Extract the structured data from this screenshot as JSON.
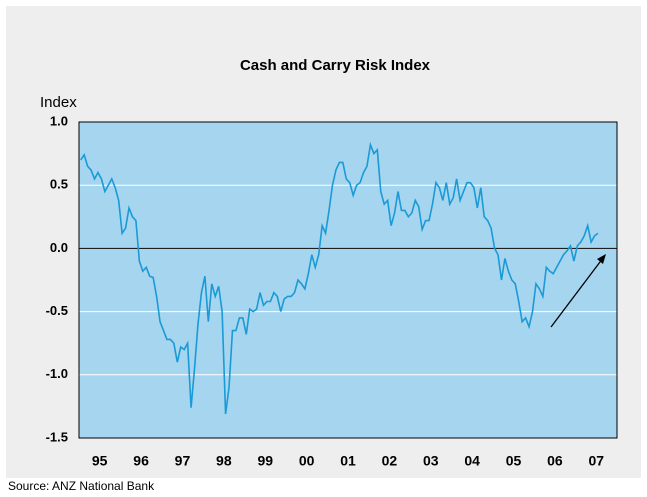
{
  "chart_data": {
    "type": "line",
    "title": "Cash and Carry Risk Index",
    "y_label": "Index",
    "source": "Source: ANZ National Bank",
    "categories": [
      null,
      null,
      null,
      null,
      null,
      null,
      "95",
      null,
      null,
      null,
      null,
      null,
      null,
      null,
      null,
      null,
      null,
      null,
      "96",
      null,
      null,
      null,
      null,
      null,
      null,
      null,
      null,
      null,
      null,
      null,
      "97",
      null,
      null,
      null,
      null,
      null,
      null,
      null,
      null,
      null,
      null,
      null,
      "98",
      null,
      null,
      null,
      null,
      null,
      null,
      null,
      null,
      null,
      null,
      null,
      "99",
      null,
      null,
      null,
      null,
      null,
      null,
      null,
      null,
      null,
      null,
      null,
      "00",
      null,
      null,
      null,
      null,
      null,
      null,
      null,
      null,
      null,
      null,
      null,
      "01",
      null,
      null,
      null,
      null,
      null,
      null,
      null,
      null,
      null,
      null,
      null,
      "02",
      null,
      null,
      null,
      null,
      null,
      null,
      null,
      null,
      null,
      null,
      null,
      "03",
      null,
      null,
      null,
      null,
      null,
      null,
      null,
      null,
      null,
      null,
      null,
      "04",
      null,
      null,
      null,
      null,
      null,
      null,
      null,
      null,
      null,
      null,
      null,
      "05",
      null,
      null,
      null,
      null,
      null,
      null,
      null,
      null,
      null,
      null,
      null,
      "06",
      null,
      null,
      null,
      null,
      null,
      null,
      null,
      null,
      null,
      null,
      null,
      "07",
      null,
      null,
      null,
      null,
      null
    ],
    "values": [
      0.7,
      0.74,
      0.65,
      0.62,
      0.55,
      0.6,
      0.55,
      0.45,
      0.5,
      0.55,
      0.48,
      0.38,
      0.12,
      0.16,
      0.32,
      0.25,
      0.22,
      -0.1,
      -0.18,
      -0.15,
      -0.22,
      -0.23,
      -0.38,
      -0.58,
      -0.65,
      -0.72,
      -0.72,
      -0.75,
      -0.9,
      -0.78,
      -0.8,
      -0.75,
      -1.26,
      -0.95,
      -0.6,
      -0.35,
      -0.22,
      -0.58,
      -0.28,
      -0.38,
      -0.3,
      -0.5,
      -1.31,
      -1.1,
      -0.65,
      -0.65,
      -0.55,
      -0.55,
      -0.68,
      -0.48,
      -0.5,
      -0.48,
      -0.35,
      -0.45,
      -0.42,
      -0.42,
      -0.35,
      -0.38,
      -0.5,
      -0.4,
      -0.38,
      -0.38,
      -0.35,
      -0.25,
      -0.28,
      -0.32,
      -0.2,
      -0.05,
      -0.15,
      -0.05,
      0.18,
      0.12,
      0.3,
      0.5,
      0.62,
      0.68,
      0.68,
      0.55,
      0.52,
      0.42,
      0.5,
      0.52,
      0.6,
      0.65,
      0.82,
      0.75,
      0.78,
      0.45,
      0.35,
      0.38,
      0.18,
      0.28,
      0.45,
      0.3,
      0.3,
      0.25,
      0.28,
      0.38,
      0.33,
      0.15,
      0.22,
      0.22,
      0.35,
      0.52,
      0.48,
      0.38,
      0.52,
      0.35,
      0.4,
      0.55,
      0.38,
      0.45,
      0.52,
      0.52,
      0.48,
      0.32,
      0.48,
      0.25,
      0.22,
      0.16,
      0.0,
      -0.05,
      -0.25,
      -0.08,
      -0.18,
      -0.25,
      -0.28,
      -0.42,
      -0.58,
      -0.55,
      -0.62,
      -0.5,
      -0.28,
      -0.32,
      -0.38,
      -0.15,
      -0.18,
      -0.2,
      -0.15,
      -0.1,
      -0.05,
      -0.02,
      0.02,
      -0.1,
      0.02,
      0.05,
      0.1,
      0.18,
      0.05,
      0.1,
      0.12,
      null,
      null,
      null,
      null,
      null
    ],
    "color": "#1a9ad6",
    "ylim": [
      -1.5,
      1.0
    ],
    "yticks": [
      {
        "value": -1.5,
        "label": "-1.5"
      },
      {
        "value": -1.0,
        "label": "-1.0"
      },
      {
        "value": -0.5,
        "label": "-0.5"
      },
      {
        "value": 0,
        "label": "0.0"
      },
      {
        "value": 0.5,
        "label": "0.5"
      },
      {
        "value": 1.0,
        "label": "1.0"
      }
    ],
    "grid": true
  }
}
